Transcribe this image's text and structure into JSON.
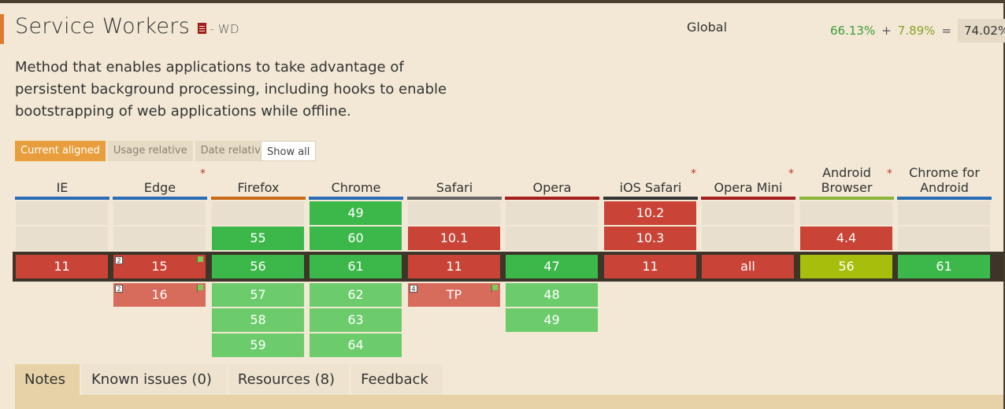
{
  "feature": {
    "title": "Service Workers",
    "status": "- WD",
    "description": "Method that enables applications to take advantage of persistent background processing, including hooks to enable bootstrapping of web applications while offline."
  },
  "usage": {
    "scope": "Global",
    "full": "66.13%",
    "plus": "+",
    "partial": "7.89%",
    "equals": "=",
    "total": "74.02%"
  },
  "view_tabs": [
    "Current aligned",
    "Usage relative",
    "Date relative"
  ],
  "show_all": "Show all",
  "colors": {
    "supported": "#3cb84a",
    "unsupported": "#c94336",
    "partial": "#a8be0c",
    "accent": "#e89e3c"
  },
  "browsers": [
    {
      "name": "IE",
      "star": false,
      "bar": "#2a6cb5",
      "cells": [
        {
          "v": "",
          "c": "blank"
        },
        {
          "v": "",
          "c": "blank"
        },
        {
          "v": "11",
          "c": "r",
          "current": true
        }
      ]
    },
    {
      "name": "Edge",
      "star": true,
      "bar": "#2a6cb5",
      "cells": [
        {
          "v": "",
          "c": "blank"
        },
        {
          "v": "",
          "c": "blank"
        },
        {
          "v": "15",
          "c": "r",
          "current": true,
          "note": "2",
          "flag": true
        },
        {
          "v": "16",
          "c": "lr",
          "note": "2",
          "flag": true
        }
      ]
    },
    {
      "name": "Firefox",
      "star": false,
      "bar": "#c96a1a",
      "cells": [
        {
          "v": "",
          "c": "blank"
        },
        {
          "v": "55",
          "c": "g"
        },
        {
          "v": "56",
          "c": "g",
          "current": true
        },
        {
          "v": "57",
          "c": "lg"
        },
        {
          "v": "58",
          "c": "lg"
        },
        {
          "v": "59",
          "c": "lg"
        }
      ]
    },
    {
      "name": "Chrome",
      "star": false,
      "bar": "#2a6cb5",
      "cells": [
        {
          "v": "49",
          "c": "g"
        },
        {
          "v": "60",
          "c": "g"
        },
        {
          "v": "61",
          "c": "g",
          "current": true
        },
        {
          "v": "62",
          "c": "lg"
        },
        {
          "v": "63",
          "c": "lg"
        },
        {
          "v": "64",
          "c": "lg"
        }
      ]
    },
    {
      "name": "Safari",
      "star": false,
      "bar": "#666666",
      "cells": [
        {
          "v": "",
          "c": "blank"
        },
        {
          "v": "10.1",
          "c": "r"
        },
        {
          "v": "11",
          "c": "r",
          "current": true
        },
        {
          "v": "TP",
          "c": "lr",
          "note": "4",
          "flag": true
        }
      ]
    },
    {
      "name": "Opera",
      "star": false,
      "bar": "#a51f1f",
      "cells": [
        {
          "v": "",
          "c": "blank"
        },
        {
          "v": "",
          "c": "blank"
        },
        {
          "v": "47",
          "c": "g",
          "current": true
        },
        {
          "v": "48",
          "c": "lg"
        },
        {
          "v": "49",
          "c": "lg"
        }
      ]
    },
    {
      "name": "iOS Safari",
      "star": true,
      "bar": "#333333",
      "cells": [
        {
          "v": "10.2",
          "c": "r"
        },
        {
          "v": "10.3",
          "c": "r"
        },
        {
          "v": "11",
          "c": "r",
          "current": true
        }
      ]
    },
    {
      "name": "Opera Mini",
      "star": true,
      "bar": "#a51f1f",
      "cells": [
        {
          "v": "",
          "c": "blank"
        },
        {
          "v": "",
          "c": "blank"
        },
        {
          "v": "all",
          "c": "r",
          "current": true
        }
      ]
    },
    {
      "name": "Android Browser",
      "star": true,
      "bar": "#8ab43c",
      "cells": [
        {
          "v": "",
          "c": "blank"
        },
        {
          "v": "4.4",
          "c": "r"
        },
        {
          "v": "56",
          "c": "yg",
          "current": true
        }
      ]
    },
    {
      "name": "Chrome for Android",
      "star": false,
      "bar": "#2a6cb5",
      "cells": [
        {
          "v": "",
          "c": "blank"
        },
        {
          "v": "",
          "c": "blank"
        },
        {
          "v": "61",
          "c": "g",
          "current": true
        }
      ]
    }
  ],
  "star_symbol": "*",
  "bottom_tabs": [
    "Notes",
    "Known issues (0)",
    "Resources (8)",
    "Feedback"
  ]
}
